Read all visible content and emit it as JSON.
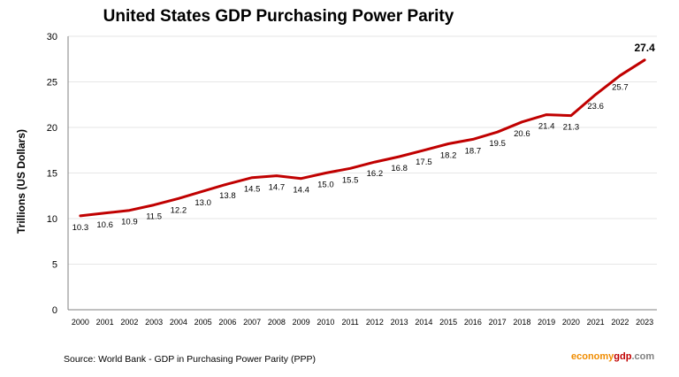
{
  "chart_data": {
    "type": "line",
    "title": "United States GDP Purchasing Power Parity",
    "ylabel": "Trillions (US Dollars)",
    "xlabel": "",
    "x": [
      "2000",
      "2001",
      "2002",
      "2003",
      "2004",
      "2005",
      "2006",
      "2007",
      "2008",
      "2009",
      "2010",
      "2011",
      "2012",
      "2013",
      "2014",
      "2015",
      "2016",
      "2017",
      "2018",
      "2019",
      "2020",
      "2021",
      "2022",
      "2023"
    ],
    "series": [
      {
        "values": [
          10.3,
          10.6,
          10.9,
          11.5,
          12.2,
          13.0,
          13.8,
          14.5,
          14.7,
          14.4,
          15.0,
          15.5,
          16.2,
          16.8,
          17.5,
          18.2,
          18.7,
          19.5,
          20.6,
          21.4,
          21.3,
          23.6,
          25.7,
          27.4
        ],
        "labels": [
          "10.3",
          "10.6",
          "10.9",
          "11.5",
          "12.2",
          "13.0",
          "13.8",
          "14.5",
          "14.7",
          "14.4",
          "15.0",
          "15.5",
          "16.2",
          "16.8",
          "17.5",
          "18.2",
          "18.7",
          "19.5",
          "20.6",
          "21.4",
          "21.3",
          "23.6",
          "25.7",
          "27.4"
        ],
        "color": "#c00000"
      }
    ],
    "ylim": [
      0,
      30
    ],
    "yticks": [
      "0",
      "5",
      "10",
      "15",
      "20",
      "25",
      "30"
    ],
    "grid": true,
    "legend": "none"
  },
  "source_text": "Source:  World Bank -  GDP  in Purchasing Power Parity (PPP)",
  "brand": {
    "part1": "economy",
    "part2": "gdp",
    "part3": ".com"
  },
  "colors": {
    "line": "#c00000",
    "grid": "#e6e6e6",
    "axis": "#808080"
  }
}
